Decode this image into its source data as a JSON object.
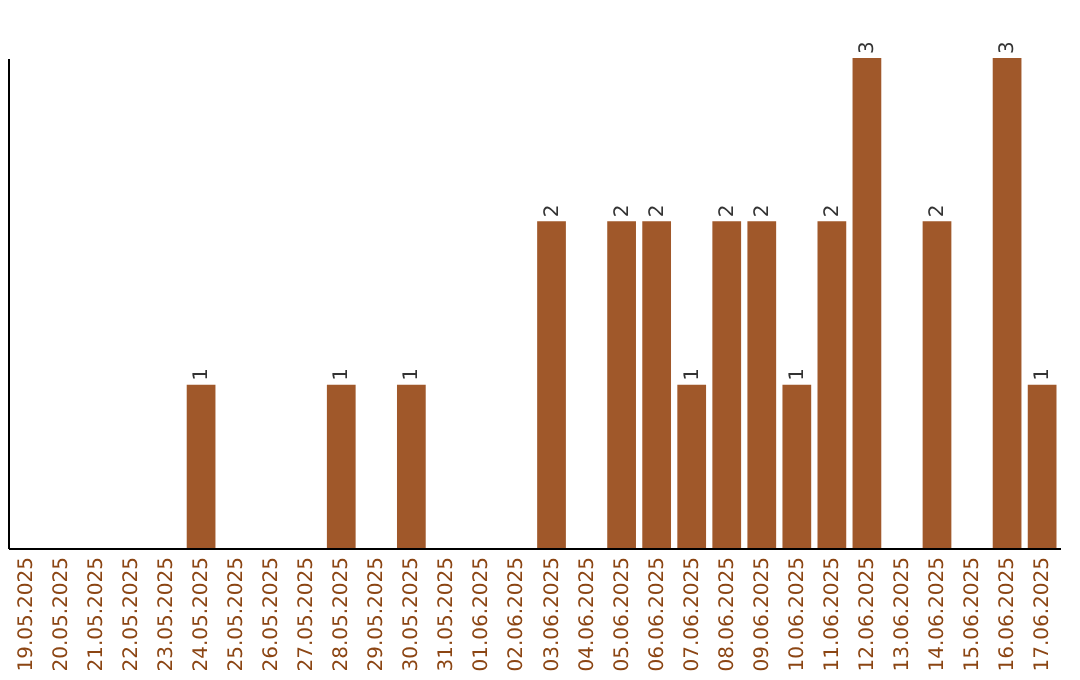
{
  "chart_data": {
    "type": "bar",
    "categories": [
      "19.05.2025",
      "20.05.2025",
      "21.05.2025",
      "22.05.2025",
      "23.05.2025",
      "24.05.2025",
      "25.05.2025",
      "26.05.2025",
      "27.05.2025",
      "28.05.2025",
      "29.05.2025",
      "30.05.2025",
      "31.05.2025",
      "01.06.2025",
      "02.06.2025",
      "03.06.2025",
      "04.06.2025",
      "05.06.2025",
      "06.06.2025",
      "07.06.2025",
      "08.06.2025",
      "09.06.2025",
      "10.06.2025",
      "11.06.2025",
      "12.06.2025",
      "13.06.2025",
      "14.06.2025",
      "15.06.2025",
      "16.06.2025",
      "17.06.2025"
    ],
    "values": [
      0,
      0,
      0,
      0,
      0,
      1,
      0,
      0,
      0,
      1,
      0,
      1,
      0,
      0,
      0,
      2,
      0,
      2,
      2,
      1,
      2,
      2,
      1,
      2,
      3,
      0,
      2,
      0,
      3,
      1
    ],
    "value_labels": [
      null,
      null,
      null,
      null,
      null,
      "1",
      null,
      null,
      null,
      "1",
      null,
      "1",
      null,
      null,
      null,
      "2",
      null,
      "2",
      "2",
      "1",
      "2",
      "2",
      "1",
      "2",
      "3",
      null,
      "2",
      null,
      "3",
      "1"
    ],
    "color": "#a0582a",
    "grid": false
  }
}
